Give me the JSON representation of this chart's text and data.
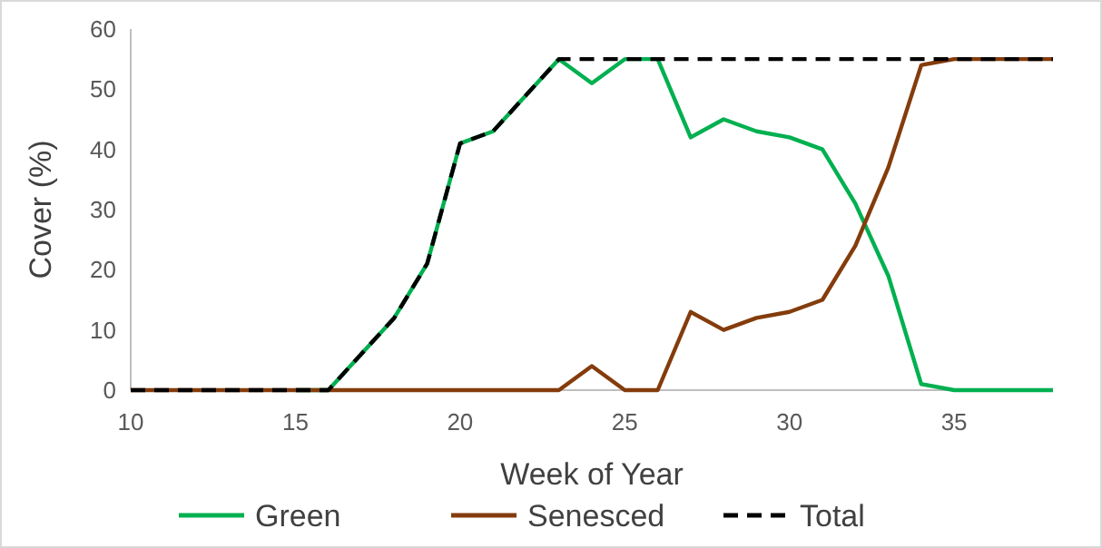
{
  "chart_data": {
    "type": "line",
    "xlabel": "Week of Year",
    "ylabel": "Cover (%)",
    "x": [
      10,
      11,
      12,
      13,
      14,
      15,
      16,
      17,
      18,
      19,
      20,
      21,
      22,
      23,
      24,
      25,
      26,
      27,
      28,
      29,
      30,
      31,
      32,
      33,
      34,
      35,
      36,
      37,
      38
    ],
    "series": [
      {
        "name": "Green",
        "color": "#00b050",
        "values": [
          null,
          null,
          null,
          null,
          null,
          0,
          0,
          6,
          12,
          21,
          41,
          43,
          49,
          55,
          51,
          55,
          55,
          42,
          45,
          43,
          42,
          40,
          31,
          19,
          1,
          0,
          0,
          0,
          0
        ]
      },
      {
        "name": "Senesced",
        "color": "#843c0c",
        "values": [
          0,
          0,
          0,
          0,
          0,
          0,
          0,
          0,
          0,
          0,
          0,
          0,
          0,
          0,
          4,
          0,
          0,
          13,
          10,
          12,
          13,
          15,
          24,
          37,
          54,
          55,
          55,
          55,
          55
        ]
      },
      {
        "name": "Total",
        "color": "#000000",
        "line_style": "dashed",
        "values": [
          0,
          0,
          0,
          0,
          0,
          0,
          0,
          6,
          12,
          21,
          41,
          43,
          49,
          55,
          55,
          55,
          55,
          55,
          55,
          55,
          55,
          55,
          55,
          55,
          55,
          55,
          55,
          55,
          55
        ]
      }
    ],
    "xlim": [
      10,
      38
    ],
    "xticks": [
      10,
      15,
      20,
      25,
      30,
      35
    ],
    "ylim": [
      0,
      60
    ],
    "yticks": [
      0,
      10,
      20,
      30,
      40,
      50,
      60
    ],
    "grid": false,
    "legend": "bottom",
    "marker": "none"
  }
}
